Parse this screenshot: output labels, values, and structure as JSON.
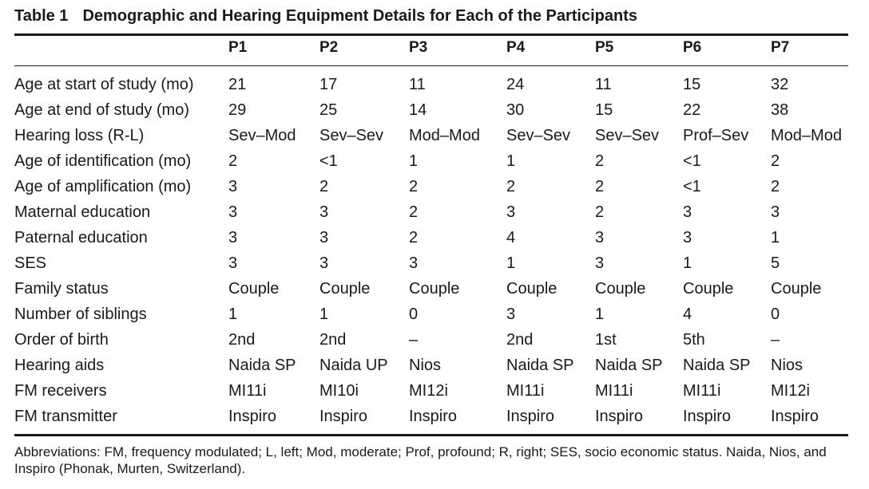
{
  "table": {
    "label": "Table 1",
    "title": "Demographic and Hearing Equipment Details for Each of the Participants",
    "columns": [
      "P1",
      "P2",
      "P3",
      "P4",
      "P5",
      "P6",
      "P7"
    ],
    "rows": [
      {
        "label": "Age at start of study (mo)",
        "values": [
          "21",
          "17",
          "11",
          "24",
          "11",
          "15",
          "32"
        ]
      },
      {
        "label": "Age at end of study (mo)",
        "values": [
          "29",
          "25",
          "14",
          "30",
          "15",
          "22",
          "38"
        ]
      },
      {
        "label": "Hearing loss (R-L)",
        "values": [
          "Sev–Mod",
          "Sev–Sev",
          "Mod–Mod",
          "Sev–Sev",
          "Sev–Sev",
          "Prof–Sev",
          "Mod–Mod"
        ]
      },
      {
        "label": "Age of identification (mo)",
        "values": [
          "2",
          "<1",
          "1",
          "1",
          "2",
          "<1",
          "2"
        ]
      },
      {
        "label": "Age of amplification (mo)",
        "values": [
          "3",
          "2",
          "2",
          "2",
          "2",
          "<1",
          "2"
        ]
      },
      {
        "label": "Maternal education",
        "values": [
          "3",
          "3",
          "2",
          "3",
          "2",
          "3",
          "3"
        ]
      },
      {
        "label": "Paternal education",
        "values": [
          "3",
          "3",
          "2",
          "4",
          "3",
          "3",
          "1"
        ]
      },
      {
        "label": "SES",
        "values": [
          "3",
          "3",
          "3",
          "1",
          "3",
          "1",
          "5"
        ]
      },
      {
        "label": "Family status",
        "values": [
          "Couple",
          "Couple",
          "Couple",
          "Couple",
          "Couple",
          "Couple",
          "Couple"
        ]
      },
      {
        "label": "Number of siblings",
        "values": [
          "1",
          "1",
          "0",
          "3",
          "1",
          "4",
          "0"
        ]
      },
      {
        "label": "Order of birth",
        "values": [
          "2nd",
          "2nd",
          "–",
          "2nd",
          "1st",
          "5th",
          "–"
        ]
      },
      {
        "label": "Hearing aids",
        "values": [
          "Naida SP",
          "Naida UP",
          "Nios",
          "Naida SP",
          "Naida SP",
          "Naida SP",
          "Nios"
        ]
      },
      {
        "label": "FM receivers",
        "values": [
          "MI11i",
          "MI10i",
          "MI12i",
          "MI11i",
          "MI11i",
          "MI11i",
          "MI12i"
        ]
      },
      {
        "label": "FM transmitter",
        "values": [
          "Inspiro",
          "Inspiro",
          "Inspiro",
          "Inspiro",
          "Inspiro",
          "Inspiro",
          "Inspiro"
        ]
      }
    ],
    "footnote": "Abbreviations: FM, frequency modulated; L, left; Mod, moderate; Prof, profound; R, right; SES, socio economic status. Naida, Nios, and Inspiro (Phonak, Murten, Switzerland)."
  }
}
